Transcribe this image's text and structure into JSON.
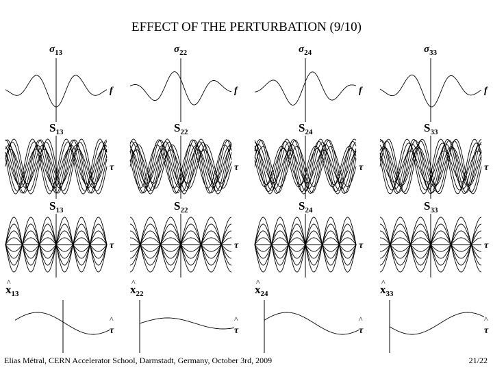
{
  "title": "EFFECT OF THE PERTURBATION (9/10)",
  "footer": {
    "left": "Elias Métral, CERN Accelerator School, Darmstadt, Germany, October 3rd, 2009",
    "page": "21/22"
  },
  "columns": [
    {
      "sigma": {
        "symbol": "σ",
        "sub": "13"
      },
      "sigma_axis": "f",
      "s_upper": {
        "symbol": "S",
        "sub": "13"
      },
      "s_upper_axis": "τ",
      "s_lower": {
        "symbol": "S",
        "sub": "13"
      },
      "s_lower_axis": "τ",
      "x": {
        "hat": "^",
        "symbol": "x",
        "sub": "13"
      },
      "x_axis": {
        "hat": "^",
        "symbol": "τ"
      }
    },
    {
      "sigma": {
        "symbol": "σ",
        "sub": "22"
      },
      "sigma_axis": "f",
      "s_upper": {
        "symbol": "S",
        "sub": "22"
      },
      "s_upper_axis": "τ",
      "s_lower": {
        "symbol": "S",
        "sub": "22"
      },
      "s_lower_axis": "τ",
      "x": {
        "hat": "^",
        "symbol": "x",
        "sub": "22"
      },
      "x_axis": {
        "hat": "^",
        "symbol": "τ"
      }
    },
    {
      "sigma": {
        "symbol": "σ",
        "sub": "24"
      },
      "sigma_axis": "f",
      "s_upper": {
        "symbol": "S",
        "sub": "24"
      },
      "s_upper_axis": "τ",
      "s_lower": {
        "symbol": "S",
        "sub": "24"
      },
      "s_lower_axis": "τ",
      "x": {
        "hat": "^",
        "symbol": "x",
        "sub": "24"
      },
      "x_axis": {
        "hat": "^",
        "symbol": "τ"
      }
    },
    {
      "sigma": {
        "symbol": "σ",
        "sub": "33"
      },
      "sigma_axis": "f",
      "s_upper": {
        "symbol": "S",
        "sub": "33"
      },
      "s_upper_axis": "τ",
      "s_lower": {
        "symbol": "S",
        "sub": "33"
      },
      "s_lower_axis": "τ",
      "x": {
        "hat": "^",
        "symbol": "x",
        "sub": "33"
      },
      "x_axis": {
        "hat": "^",
        "symbol": "τ"
      }
    }
  ]
}
